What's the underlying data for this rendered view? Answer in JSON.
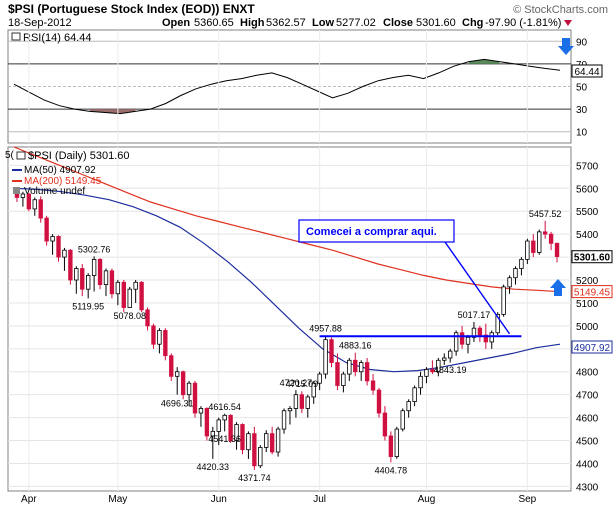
{
  "header": {
    "symbol_line": "$PSI (Portuguese Stock Index (EOD)) ENXT",
    "date": "18-Sep-2012",
    "open_label": "Open",
    "open": "5360.65",
    "high_label": "High",
    "high": "5362.57",
    "low_label": "Low",
    "low": "5277.02",
    "close_label": "Close",
    "close": "5301.60",
    "chg_label": "Chg",
    "chg": "-97.90 (-1.81%)",
    "watermark": "© StockCharts.com"
  },
  "colors": {
    "price_up": "#ffffff",
    "price_down": "#d01040",
    "ma50": "#1c2e9e",
    "ma200": "#e0301e",
    "rsi_fill_over": "#5a8a5a",
    "rsi_fill_under": "#9b6e6e",
    "trendline": "#0000ff",
    "arrow": "#1a6fe8"
  },
  "rsi_panel": {
    "legend": "RSI(14) 64.44",
    "last_value_tag": "64.44",
    "ticks": [
      "90",
      "70",
      "50",
      "30",
      "10"
    ]
  },
  "price_panel": {
    "legend_main": "$PSI (Daily) 5301.60",
    "legend_ma50": "MA(50) 4907.92",
    "legend_ma200": "MA(200) 5149.45",
    "legend_volume": "Volume undef",
    "edge_label": "5(",
    "ticks": [
      "5700",
      "5600",
      "5500",
      "5400",
      "5300",
      "5200",
      "5100",
      "5000",
      "4900",
      "4800",
      "4700",
      "4600",
      "4500",
      "4400",
      "4300"
    ],
    "tags": {
      "close": "5301.60",
      "ma200": "5149.45",
      "ma50": "4907.92"
    },
    "annotation": "Comecei a comprar aqui."
  },
  "x_axis": [
    "Apr",
    "May",
    "Jun",
    "Jul",
    "Aug",
    "Sep"
  ],
  "chart_data": {
    "type": "candlestick",
    "title": "$PSI (Portuguese Stock Index (EOD)) ENXT",
    "ylim": [
      4280,
      5780
    ],
    "price_labels": [
      {
        "text": "5302.76",
        "value": 5302.76
      },
      {
        "text": "5119.95",
        "value": 5119.95
      },
      {
        "text": "5078.08",
        "value": 5078.08
      },
      {
        "text": "4616.54",
        "value": 4616.54
      },
      {
        "text": "4420.33",
        "value": 4420.33
      },
      {
        "text": "4371.74",
        "value": 4371.74
      },
      {
        "text": "4541.36",
        "value": 4541.36
      },
      {
        "text": "4715.09",
        "value": 4715.09
      },
      {
        "text": "4957.88",
        "value": 4957.88
      },
      {
        "text": "4883.16",
        "value": 4883.16
      },
      {
        "text": "4720.27",
        "value": 4720.27
      },
      {
        "text": "4696.31",
        "value": 4696.31
      },
      {
        "text": "4404.78",
        "value": 4404.78
      },
      {
        "text": "5017.17",
        "value": 5017.17
      },
      {
        "text": "4843.19",
        "value": 4843.19
      },
      {
        "text": "5457.52",
        "value": 5457.52
      }
    ],
    "candles": [
      [
        5590,
        5600,
        5540,
        5560
      ],
      [
        5560,
        5585,
        5520,
        5575
      ],
      [
        5575,
        5580,
        5500,
        5510
      ],
      [
        5510,
        5560,
        5480,
        5550
      ],
      [
        5550,
        5565,
        5450,
        5470
      ],
      [
        5470,
        5480,
        5350,
        5370
      ],
      [
        5370,
        5400,
        5310,
        5390
      ],
      [
        5390,
        5395,
        5280,
        5300
      ],
      [
        5300,
        5340,
        5240,
        5330
      ],
      [
        5330,
        5335,
        5180,
        5200
      ],
      [
        5200,
        5260,
        5140,
        5250
      ],
      [
        5250,
        5270,
        5130,
        5160
      ],
      [
        5160,
        5230,
        5120,
        5220
      ],
      [
        5220,
        5303,
        5150,
        5290
      ],
      [
        5290,
        5295,
        5160,
        5180
      ],
      [
        5180,
        5250,
        5130,
        5240
      ],
      [
        5240,
        5250,
        5120,
        5140
      ],
      [
        5140,
        5200,
        5090,
        5190
      ],
      [
        5190,
        5200,
        5060,
        5080
      ],
      [
        5080,
        5170,
        5078,
        5160
      ],
      [
        5160,
        5200,
        5100,
        5190
      ],
      [
        5190,
        5195,
        5060,
        5070
      ],
      [
        5070,
        5080,
        4980,
        5000
      ],
      [
        5000,
        5010,
        4900,
        4920
      ],
      [
        4920,
        4990,
        4880,
        4980
      ],
      [
        4980,
        4990,
        4850,
        4870
      ],
      [
        4870,
        4880,
        4760,
        4780
      ],
      [
        4780,
        4820,
        4700,
        4800
      ],
      [
        4800,
        4805,
        4680,
        4700
      ],
      [
        4700,
        4760,
        4650,
        4750
      ],
      [
        4750,
        4760,
        4600,
        4620
      ],
      [
        4620,
        4650,
        4560,
        4640
      ],
      [
        4640,
        4645,
        4500,
        4520
      ],
      [
        4520,
        4560,
        4420,
        4540
      ],
      [
        4540,
        4600,
        4480,
        4590
      ],
      [
        4590,
        4617,
        4540,
        4610
      ],
      [
        4610,
        4615,
        4490,
        4500
      ],
      [
        4500,
        4580,
        4460,
        4570
      ],
      [
        4570,
        4575,
        4440,
        4460
      ],
      [
        4460,
        4540,
        4420,
        4530
      ],
      [
        4530,
        4560,
        4372,
        4390
      ],
      [
        4390,
        4480,
        4380,
        4470
      ],
      [
        4470,
        4545,
        4450,
        4530
      ],
      [
        4530,
        4560,
        4440,
        4450
      ],
      [
        4450,
        4560,
        4430,
        4550
      ],
      [
        4550,
        4640,
        4530,
        4630
      ],
      [
        4630,
        4650,
        4570,
        4640
      ],
      [
        4640,
        4720,
        4600,
        4700
      ],
      [
        4700,
        4715,
        4620,
        4640
      ],
      [
        4640,
        4700,
        4600,
        4690
      ],
      [
        4690,
        4760,
        4660,
        4750
      ],
      [
        4750,
        4800,
        4720,
        4790
      ],
      [
        4790,
        4958,
        4770,
        4940
      ],
      [
        4940,
        4950,
        4820,
        4840
      ],
      [
        4840,
        4880,
        4720,
        4740
      ],
      [
        4740,
        4800,
        4710,
        4790
      ],
      [
        4790,
        4860,
        4760,
        4850
      ],
      [
        4850,
        4883,
        4780,
        4800
      ],
      [
        4800,
        4850,
        4760,
        4840
      ],
      [
        4840,
        4860,
        4740,
        4760
      ],
      [
        4760,
        4790,
        4700,
        4720
      ],
      [
        4720,
        4730,
        4600,
        4620
      ],
      [
        4620,
        4650,
        4500,
        4520
      ],
      [
        4520,
        4540,
        4405,
        4430
      ],
      [
        4430,
        4560,
        4420,
        4550
      ],
      [
        4550,
        4640,
        4540,
        4630
      ],
      [
        4630,
        4680,
        4600,
        4670
      ],
      [
        4670,
        4740,
        4650,
        4730
      ],
      [
        4730,
        4800,
        4700,
        4780
      ],
      [
        4780,
        4820,
        4750,
        4810
      ],
      [
        4810,
        4850,
        4790,
        4800
      ],
      [
        4800,
        4860,
        4780,
        4850
      ],
      [
        4850,
        4880,
        4830,
        4860
      ],
      [
        4860,
        4900,
        4840,
        4890
      ],
      [
        4890,
        4980,
        4870,
        4970
      ],
      [
        4970,
        5000,
        4900,
        4920
      ],
      [
        4920,
        4960,
        4880,
        4950
      ],
      [
        4950,
        5017,
        4930,
        4990
      ],
      [
        4990,
        5000,
        4930,
        4960
      ],
      [
        4960,
        5010,
        4900,
        4930
      ],
      [
        4930,
        4980,
        4900,
        4970
      ],
      [
        4970,
        5060,
        4960,
        5050
      ],
      [
        5050,
        5180,
        5040,
        5170
      ],
      [
        5170,
        5220,
        5140,
        5210
      ],
      [
        5210,
        5260,
        5180,
        5250
      ],
      [
        5250,
        5300,
        5220,
        5290
      ],
      [
        5290,
        5380,
        5270,
        5370
      ],
      [
        5370,
        5400,
        5300,
        5320
      ],
      [
        5320,
        5420,
        5310,
        5410
      ],
      [
        5410,
        5458,
        5380,
        5400
      ],
      [
        5400,
        5410,
        5330,
        5360
      ],
      [
        5360,
        5363,
        5277,
        5302
      ]
    ],
    "ma50": [
      5600,
      5595,
      5585,
      5570,
      5550,
      5520,
      5480,
      5430,
      5360,
      5280,
      5190,
      5090,
      4990,
      4900,
      4840,
      4810,
      4800,
      4805,
      4820,
      4840,
      4860,
      4880,
      4905,
      4920
    ],
    "ma200": [
      5780,
      5740,
      5700,
      5660,
      5620,
      5580,
      5540,
      5510,
      5480,
      5455,
      5430,
      5405,
      5380,
      5355,
      5330,
      5300,
      5270,
      5245,
      5220,
      5200,
      5185,
      5170,
      5160,
      5155,
      5149
    ],
    "rsi": [
      52,
      45,
      38,
      33,
      30,
      28,
      27,
      26,
      28,
      30,
      35,
      42,
      48,
      52,
      55,
      57,
      60,
      62,
      58,
      52,
      46,
      40,
      44,
      50,
      55,
      58,
      60,
      57,
      62,
      68,
      72,
      74,
      72,
      70,
      68,
      66,
      64.44
    ],
    "trendline_value": 4955,
    "annotation_arrow_target": 4965
  }
}
